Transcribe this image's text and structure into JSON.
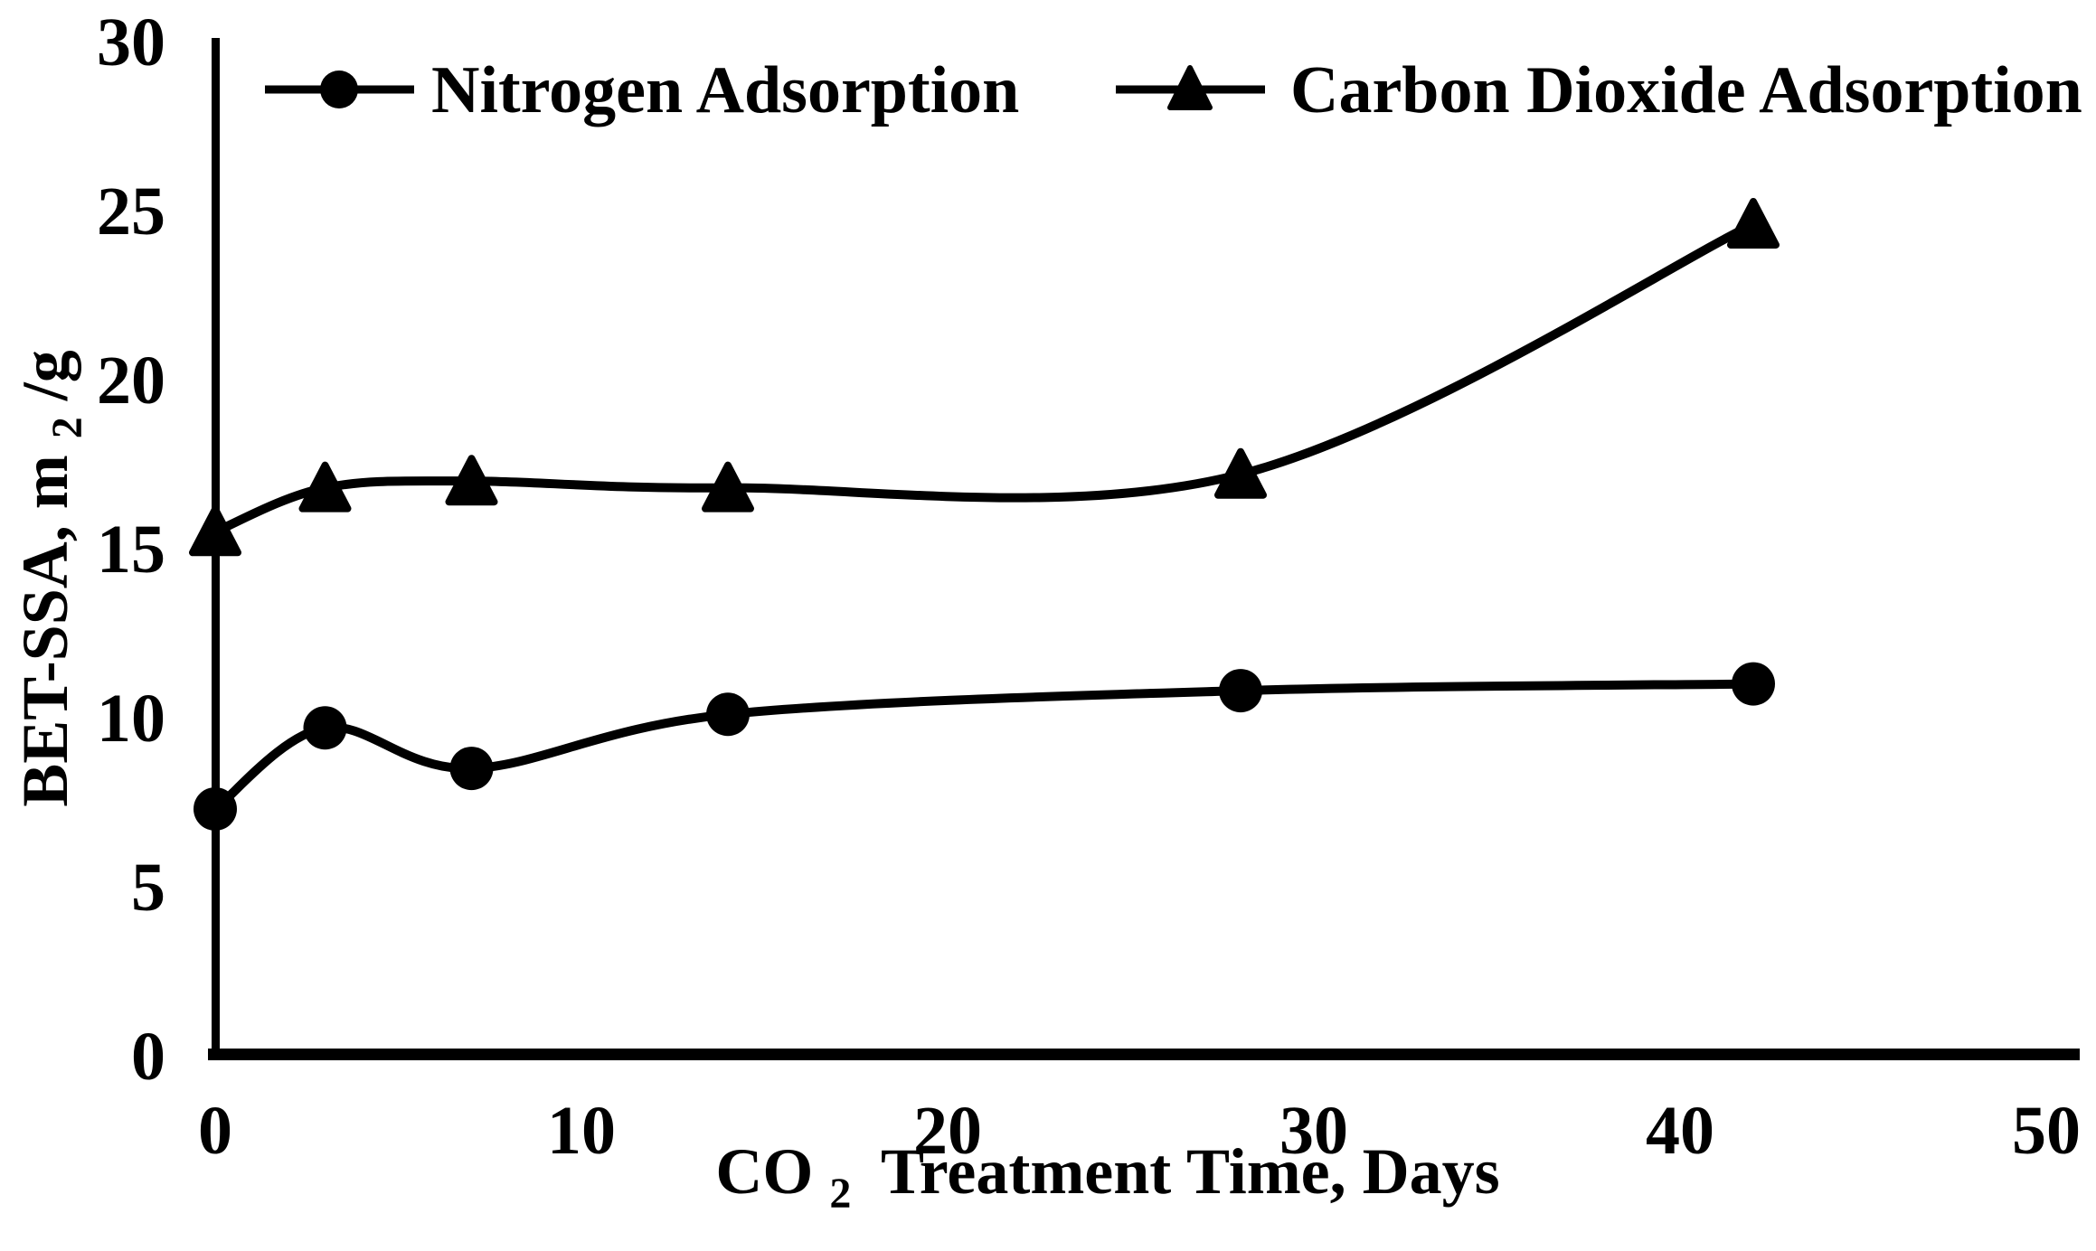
{
  "figure": {
    "background": "#ffffff",
    "ink": "#000000"
  },
  "chart_data": {
    "type": "line",
    "smoothed": true,
    "grid": false,
    "legend_position": "top-inside",
    "x": [
      0,
      3,
      7,
      14,
      28,
      42
    ],
    "series": [
      {
        "name": "Nitrogen Adsorption",
        "marker": "circle",
        "color": "#000000",
        "values": [
          7.3,
          9.7,
          8.5,
          10.1,
          10.8,
          11.0
        ]
      },
      {
        "name": "Carbon Dioxide Adsorption",
        "marker": "triangle",
        "color": "#000000",
        "values": [
          15.5,
          16.8,
          17.0,
          16.8,
          17.2,
          24.6
        ]
      }
    ],
    "xlabel": {
      "prefix": "CO",
      "sub": "2",
      "rest": "Treatment Time, Days"
    },
    "ylabel": {
      "prefix": "BET-SSA, m",
      "sub": "2",
      "rest": "/g"
    },
    "x_ticks": [
      "0",
      "10",
      "20",
      "30",
      "40",
      "50"
    ],
    "y_ticks": [
      "0",
      "5",
      "10",
      "15",
      "20",
      "25",
      "30"
    ],
    "xlim": [
      0,
      50
    ],
    "ylim": [
      0,
      30
    ]
  }
}
